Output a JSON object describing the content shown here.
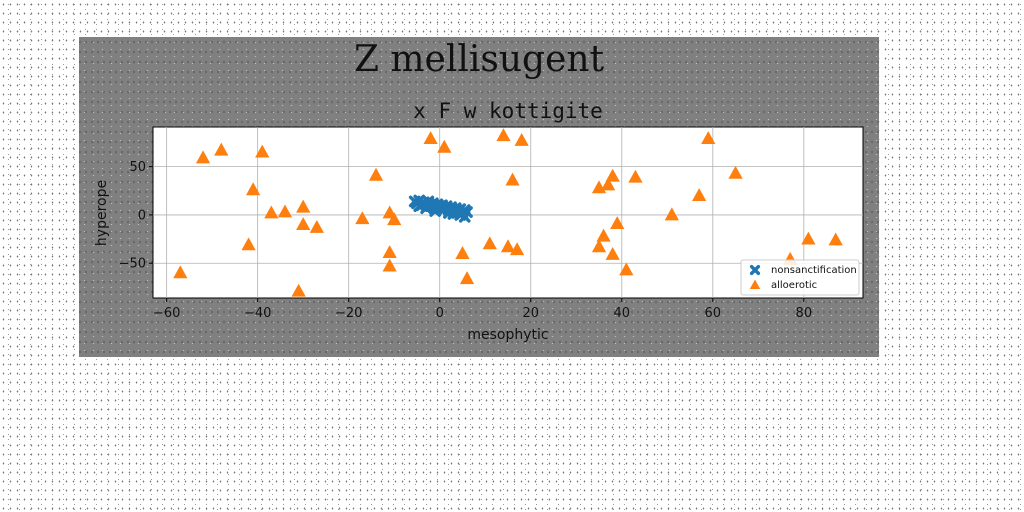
{
  "figure": {
    "suptitle": "Z mellisugent"
  },
  "chart_data": {
    "type": "scatter",
    "title": "x F w kottigite",
    "xlabel": "mesophytic",
    "ylabel": "hyperope",
    "xlim": [
      -63,
      93
    ],
    "ylim": [
      -86,
      91
    ],
    "xticks": [
      -60,
      -40,
      -20,
      0,
      20,
      40,
      60,
      80
    ],
    "yticks": [
      -50,
      0,
      50
    ],
    "grid": true,
    "legend_position": "lower-right",
    "series": [
      {
        "name": "nonsanctification",
        "marker": "x",
        "color": "#1f77b4",
        "points": [
          [
            -5.5,
            14
          ],
          [
            -5,
            12
          ],
          [
            -4.5,
            15
          ],
          [
            -4,
            10
          ],
          [
            -3.5,
            13
          ],
          [
            -3,
            11
          ],
          [
            -2.5,
            14
          ],
          [
            -2,
            9
          ],
          [
            -1.5,
            12
          ],
          [
            -1,
            8
          ],
          [
            -0.5,
            11
          ],
          [
            0,
            7
          ],
          [
            0.5,
            10
          ],
          [
            1,
            6
          ],
          [
            1.5,
            9
          ],
          [
            2,
            5
          ],
          [
            2.5,
            8
          ],
          [
            3,
            4
          ],
          [
            3.5,
            7
          ],
          [
            4,
            3
          ],
          [
            4.5,
            6
          ],
          [
            5,
            2
          ],
          [
            5.5,
            5
          ],
          [
            6,
            3
          ],
          [
            5.5,
            -2
          ],
          [
            4.5,
            0
          ],
          [
            3,
            1
          ],
          [
            -1,
            4
          ],
          [
            -3,
            7
          ],
          [
            -4.5,
            9
          ],
          [
            0,
            9
          ],
          [
            2,
            2
          ]
        ]
      },
      {
        "name": "alloerotic",
        "marker": "triangle",
        "color": "#ff7f0e",
        "points": [
          [
            -57,
            -60
          ],
          [
            -52,
            59
          ],
          [
            -48,
            67
          ],
          [
            -42,
            -31
          ],
          [
            -41,
            26
          ],
          [
            -39,
            65
          ],
          [
            -37,
            2
          ],
          [
            -34,
            3
          ],
          [
            -31,
            -79
          ],
          [
            -30,
            -10
          ],
          [
            -30,
            8
          ],
          [
            -27,
            -13
          ],
          [
            -17,
            -4
          ],
          [
            -14,
            41
          ],
          [
            -11,
            -39
          ],
          [
            -11,
            -53
          ],
          [
            -11,
            2
          ],
          [
            -10,
            -5
          ],
          [
            -2,
            79
          ],
          [
            1,
            70
          ],
          [
            5,
            -40
          ],
          [
            6,
            -66
          ],
          [
            11,
            -30
          ],
          [
            14,
            82
          ],
          [
            15,
            -33
          ],
          [
            16,
            36
          ],
          [
            17,
            -36
          ],
          [
            18,
            77
          ],
          [
            35,
            28
          ],
          [
            35,
            -33
          ],
          [
            36,
            -22
          ],
          [
            37,
            31
          ],
          [
            38,
            40
          ],
          [
            38,
            -41
          ],
          [
            39,
            -9
          ],
          [
            41,
            -57
          ],
          [
            43,
            39
          ],
          [
            51,
            0
          ],
          [
            57,
            20
          ],
          [
            59,
            79
          ],
          [
            65,
            43
          ],
          [
            77,
            -46
          ],
          [
            81,
            -25
          ],
          [
            87,
            -26
          ]
        ]
      }
    ]
  }
}
